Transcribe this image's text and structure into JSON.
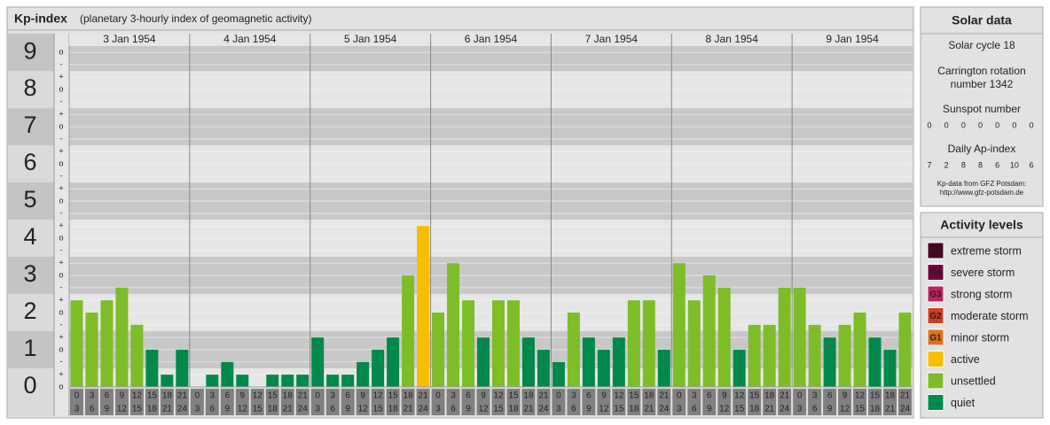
{
  "chart_data": {
    "type": "bar",
    "title": "Kp-index",
    "subtitle": "(planetary 3-hourly index of geomagnetic activity)",
    "ylim": [
      0,
      9.17
    ],
    "yticks": [
      0,
      1,
      2,
      3,
      4,
      5,
      6,
      7,
      8,
      9
    ],
    "minor_ticks": [
      {
        "value": 0,
        "label": "o"
      },
      {
        "value": 0.33,
        "label": "+"
      },
      {
        "value": 0.67,
        "label": "-"
      },
      {
        "value": 1,
        "label": "o"
      },
      {
        "value": 1.33,
        "label": "+"
      },
      {
        "value": 1.67,
        "label": "-"
      },
      {
        "value": 2,
        "label": "o"
      },
      {
        "value": 2.33,
        "label": "+"
      },
      {
        "value": 2.67,
        "label": "-"
      },
      {
        "value": 3,
        "label": "o"
      },
      {
        "value": 3.33,
        "label": "+"
      },
      {
        "value": 3.67,
        "label": "-"
      },
      {
        "value": 4,
        "label": "o"
      },
      {
        "value": 4.33,
        "label": "+"
      },
      {
        "value": 4.67,
        "label": "-"
      },
      {
        "value": 5,
        "label": "o"
      },
      {
        "value": 5.33,
        "label": "+"
      },
      {
        "value": 5.67,
        "label": "-"
      },
      {
        "value": 6,
        "label": "o"
      },
      {
        "value": 6.33,
        "label": "+"
      },
      {
        "value": 6.67,
        "label": "-"
      },
      {
        "value": 7,
        "label": "o"
      },
      {
        "value": 7.33,
        "label": "+"
      },
      {
        "value": 7.67,
        "label": "-"
      },
      {
        "value": 8,
        "label": "o"
      },
      {
        "value": 8.33,
        "label": "+"
      },
      {
        "value": 8.67,
        "label": "-"
      },
      {
        "value": 9,
        "label": "o"
      }
    ],
    "hours": [
      {
        "from": "0",
        "to": "3"
      },
      {
        "from": "3",
        "to": "6"
      },
      {
        "from": "6",
        "to": "9"
      },
      {
        "from": "9",
        "to": "12"
      },
      {
        "from": "12",
        "to": "15"
      },
      {
        "from": "15",
        "to": "18"
      },
      {
        "from": "18",
        "to": "21"
      },
      {
        "from": "21",
        "to": "24"
      }
    ],
    "days": [
      {
        "label": "3 Jan 1954",
        "values": [
          2.33,
          2,
          2.33,
          2.67,
          1.67,
          1,
          0.33,
          1
        ],
        "colors": [
          "#7dbd27",
          "#7dbd27",
          "#7dbd27",
          "#7dbd27",
          "#7dbd27",
          "#00894a",
          "#00894a",
          "#00894a"
        ]
      },
      {
        "label": "4 Jan 1954",
        "values": [
          0,
          0.33,
          0.67,
          0.33,
          0,
          0.33,
          0.33,
          0.33
        ],
        "colors": [
          "#00894a",
          "#00894a",
          "#00894a",
          "#00894a",
          "#00894a",
          "#00894a",
          "#00894a",
          "#00894a"
        ]
      },
      {
        "label": "5 Jan 1954",
        "values": [
          1.33,
          0.33,
          0.33,
          0.67,
          1,
          1.33,
          3,
          4.33
        ],
        "colors": [
          "#00894a",
          "#00894a",
          "#00894a",
          "#00894a",
          "#00894a",
          "#00894a",
          "#7dbd27",
          "#f7bd00"
        ]
      },
      {
        "label": "6 Jan 1954",
        "values": [
          2,
          3.33,
          2.33,
          1.33,
          2.33,
          2.33,
          1.33,
          1
        ],
        "colors": [
          "#7dbd27",
          "#7dbd27",
          "#7dbd27",
          "#00894a",
          "#7dbd27",
          "#7dbd27",
          "#00894a",
          "#00894a"
        ]
      },
      {
        "label": "7 Jan 1954",
        "values": [
          0.67,
          2,
          1.33,
          1,
          1.33,
          2.33,
          2.33,
          1
        ],
        "colors": [
          "#00894a",
          "#7dbd27",
          "#00894a",
          "#00894a",
          "#00894a",
          "#7dbd27",
          "#7dbd27",
          "#00894a"
        ]
      },
      {
        "label": "8 Jan 1954",
        "values": [
          3.33,
          2.33,
          3,
          2.67,
          1,
          1.67,
          1.67,
          2.67
        ],
        "colors": [
          "#7dbd27",
          "#7dbd27",
          "#7dbd27",
          "#7dbd27",
          "#00894a",
          "#7dbd27",
          "#7dbd27",
          "#7dbd27"
        ]
      },
      {
        "label": "9 Jan 1954",
        "values": [
          2.67,
          1.67,
          1.33,
          1.67,
          2,
          1.33,
          1,
          2
        ],
        "colors": [
          "#7dbd27",
          "#7dbd27",
          "#00894a",
          "#7dbd27",
          "#7dbd27",
          "#00894a",
          "#00894a",
          "#7dbd27"
        ]
      }
    ]
  },
  "solar_data": {
    "title": "Solar data",
    "cycle": "Solar cycle 18",
    "carrington": [
      "Carrington rotation",
      "number 1342"
    ],
    "sunspot_label": "Sunspot number",
    "sunspot": [
      0,
      0,
      0,
      0,
      0,
      0,
      0
    ],
    "ap_label": "Daily Ap-index",
    "ap": [
      7,
      2,
      8,
      8,
      6,
      10,
      6
    ],
    "source": [
      "Kp-data from GFZ Potsdam:",
      "http://www.gfz-potsdam.de"
    ]
  },
  "activity_levels": {
    "title": "Activity levels",
    "items": [
      {
        "badge": "G5",
        "label": "extreme storm",
        "color": "#4a0022"
      },
      {
        "badge": "G4",
        "label": "severe storm",
        "color": "#75003d"
      },
      {
        "badge": "G3",
        "label": "strong storm",
        "color": "#c0225f"
      },
      {
        "badge": "G2",
        "label": "moderate storm",
        "color": "#d43c1e"
      },
      {
        "badge": "G1",
        "label": "minor storm",
        "color": "#e07020"
      },
      {
        "label": "active",
        "color": "#f7bd00"
      },
      {
        "label": "unsettled",
        "color": "#7dbd27"
      },
      {
        "label": "quiet",
        "color": "#00894a"
      }
    ]
  }
}
